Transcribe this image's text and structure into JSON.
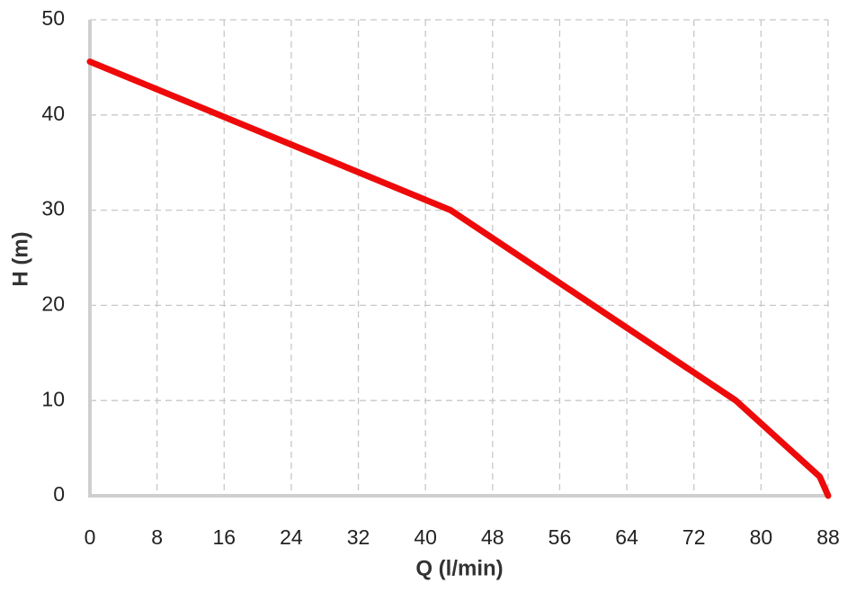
{
  "chart_data": {
    "type": "line",
    "x_label": "Q (l/min)",
    "y_label": "H (m)",
    "x": [
      0,
      43,
      77,
      87,
      88
    ],
    "values": [
      45.6,
      30,
      10,
      2,
      0
    ],
    "color": "#ee0a0a",
    "xlim": [
      0,
      88
    ],
    "xticks": [
      0,
      8,
      16,
      24,
      32,
      40,
      48,
      56,
      64,
      72,
      80,
      88
    ],
    "ylim": [
      0,
      50
    ],
    "yticks": [
      0,
      10,
      20,
      30,
      40,
      50
    ],
    "grid": true
  }
}
